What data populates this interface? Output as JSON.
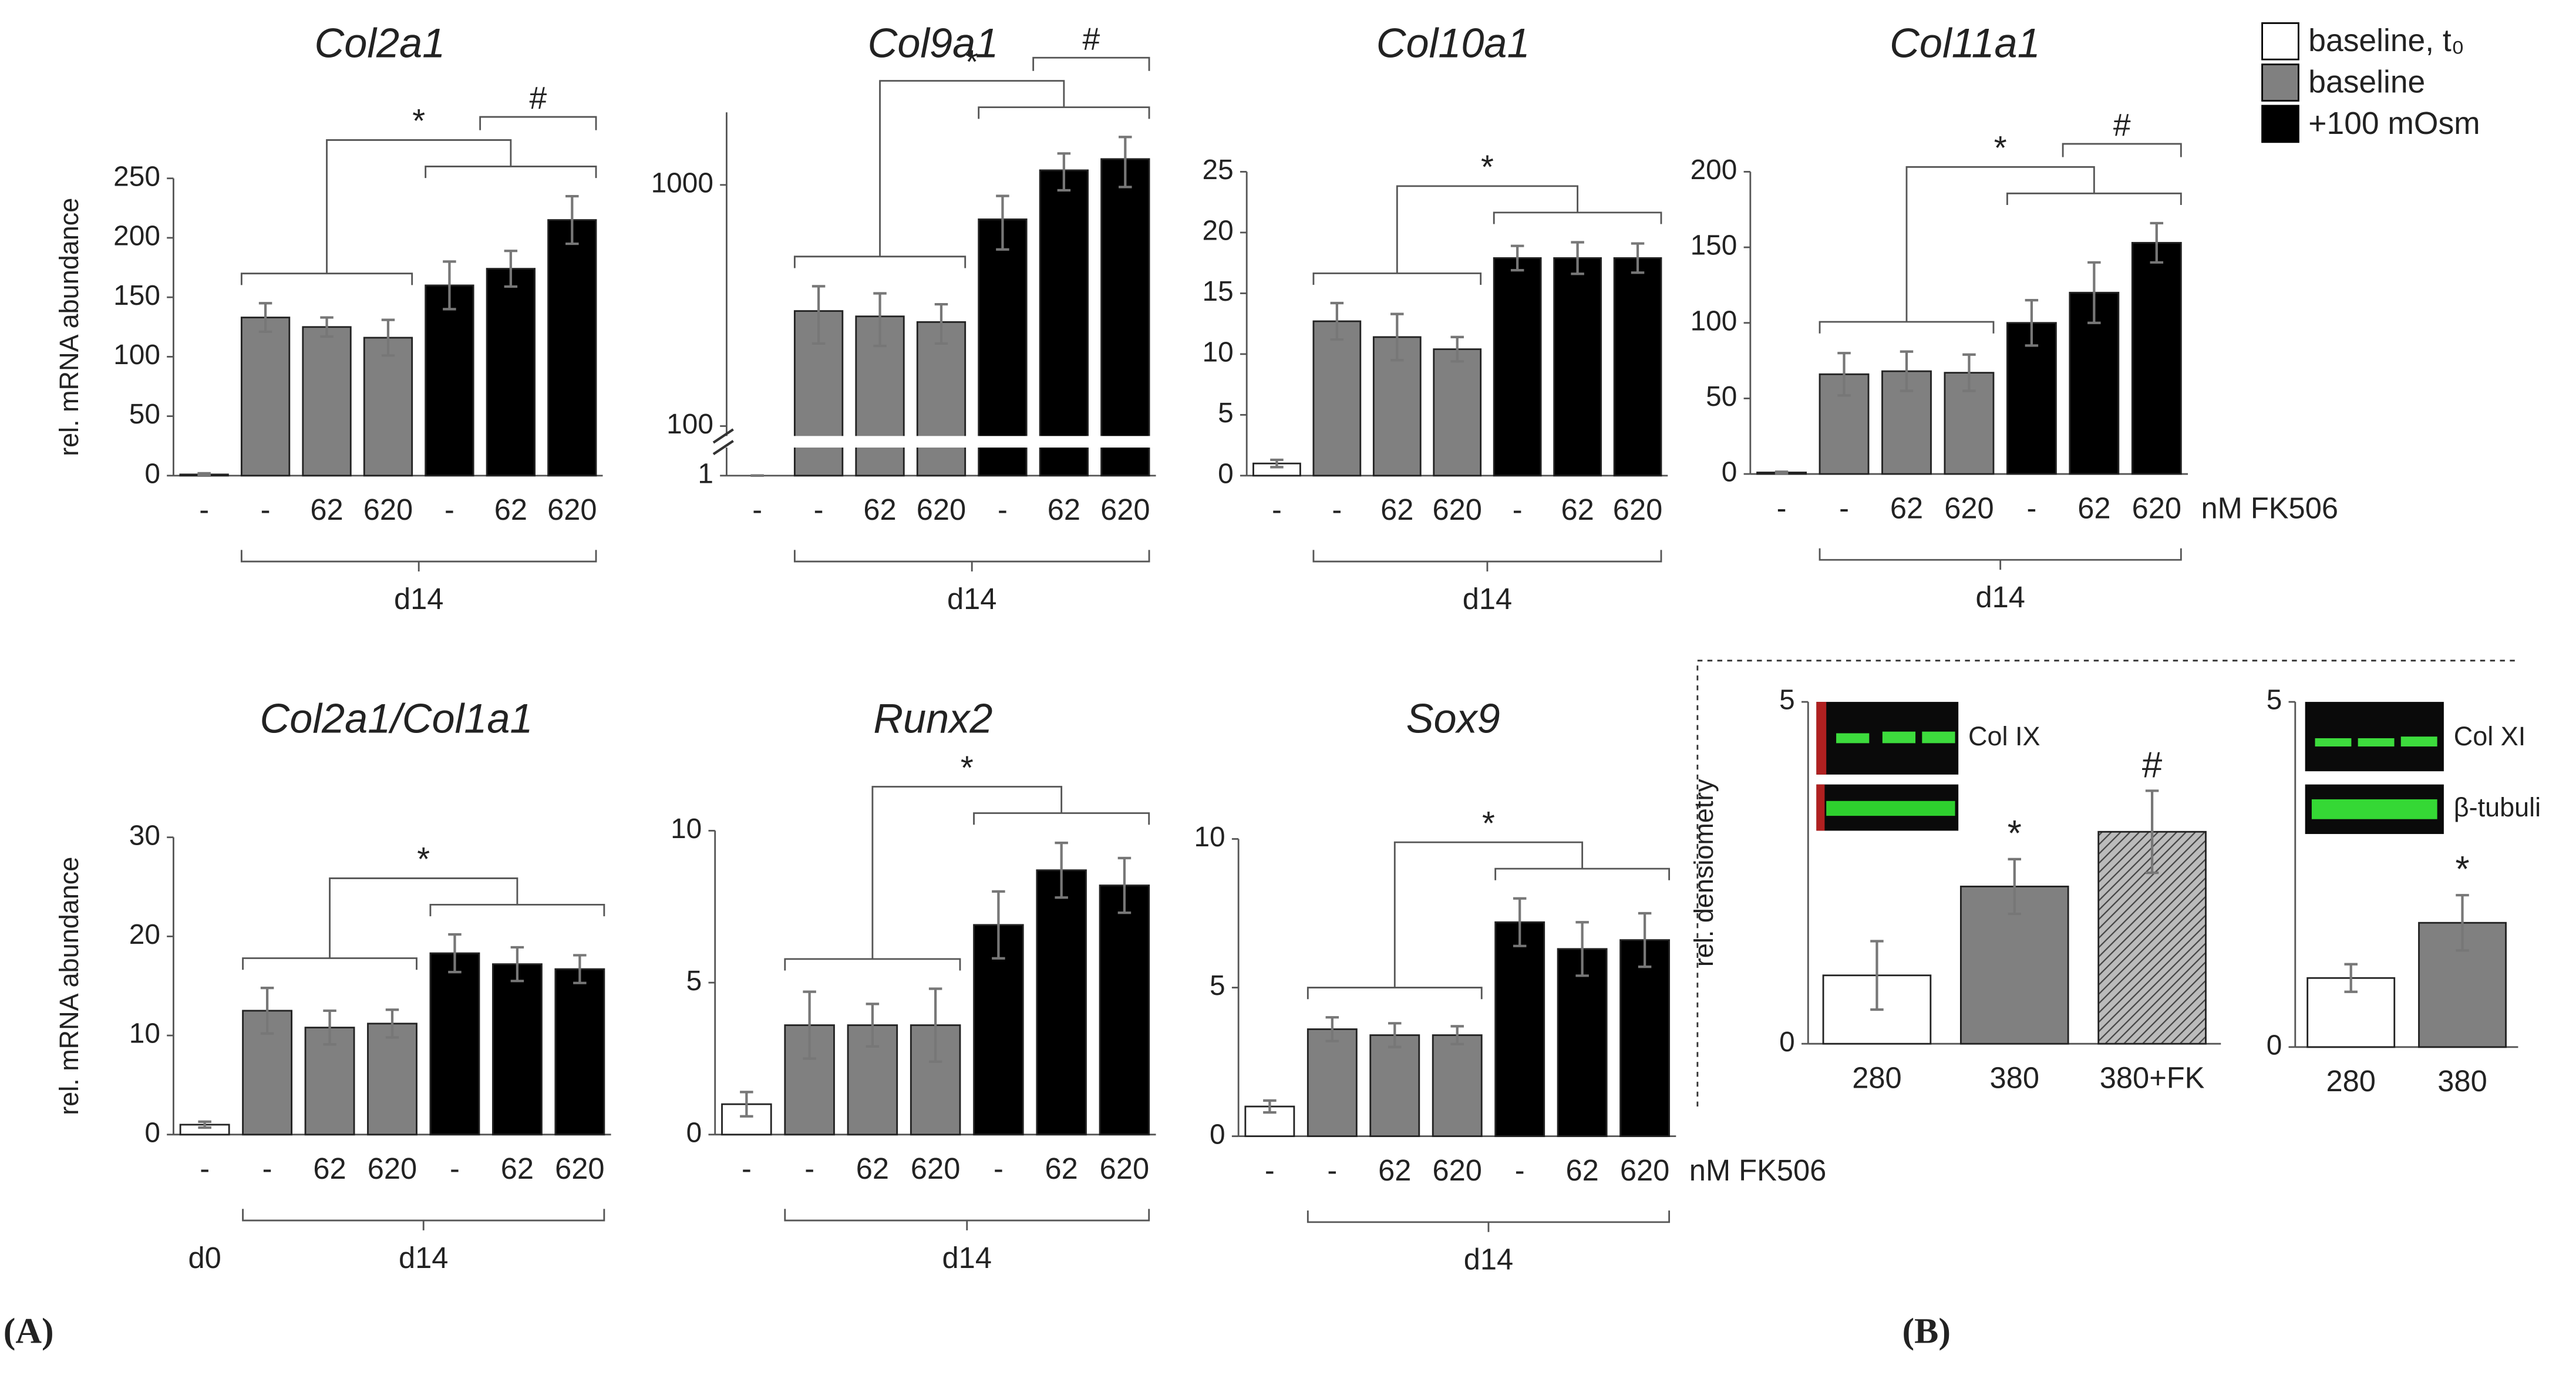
{
  "chart_data": [
    {
      "type": "bar",
      "title": "Col2a1",
      "y_label": "rel. mRNA abundance",
      "categories": [
        "-",
        "-",
        "62",
        "620",
        "-",
        "62",
        "620"
      ],
      "values": [
        1,
        133,
        125,
        116,
        160,
        174,
        215
      ],
      "errors": [
        1,
        12,
        8,
        15,
        20,
        15,
        20
      ],
      "colors": [
        "#ffffff",
        "#808080",
        "#808080",
        "#808080",
        "#000000",
        "#000000",
        "#000000"
      ],
      "ylim": [
        0,
        250
      ],
      "yticks": [
        0,
        50,
        100,
        150,
        200,
        250
      ],
      "group_label": "d14",
      "significance": [
        {
          "text": "*"
        },
        {
          "text": "#"
        }
      ]
    },
    {
      "type": "bar",
      "title": "Col9a1",
      "categories": [
        "-",
        "-",
        "62",
        "620",
        "-",
        "62",
        "620"
      ],
      "values": [
        1,
        300,
        285,
        270,
        720,
        1150,
        1280
      ],
      "errors": [
        0.3,
        80,
        70,
        50,
        180,
        200,
        300
      ],
      "colors": [
        "#ffffff",
        "#808080",
        "#808080",
        "#808080",
        "#000000",
        "#000000",
        "#000000"
      ],
      "log_scale": true,
      "axis_break": 100,
      "ylim": [
        1,
        2000
      ],
      "yticks": [
        1,
        100,
        1000
      ],
      "group_label": "d14",
      "significance": [
        {
          "text": "*"
        },
        {
          "text": "#"
        }
      ]
    },
    {
      "type": "bar",
      "title": "Col10a1",
      "categories": [
        "-",
        "-",
        "62",
        "620",
        "-",
        "62",
        "620"
      ],
      "values": [
        1,
        12.7,
        11.4,
        10.4,
        17.9,
        17.9,
        17.9
      ],
      "errors": [
        0.3,
        1.5,
        1.9,
        1,
        1,
        1.3,
        1.2
      ],
      "colors": [
        "#ffffff",
        "#808080",
        "#808080",
        "#808080",
        "#000000",
        "#000000",
        "#000000"
      ],
      "ylim": [
        0,
        25
      ],
      "yticks": [
        0,
        5,
        10,
        15,
        20,
        25
      ],
      "group_label": "d14",
      "significance": [
        {
          "text": "*"
        }
      ]
    },
    {
      "type": "bar",
      "title": "Col11a1",
      "categories": [
        "-",
        "-",
        "62",
        "620",
        "-",
        "62",
        "620"
      ],
      "values": [
        1,
        66,
        68,
        67,
        100,
        120,
        153
      ],
      "errors": [
        0.5,
        14,
        13,
        12,
        15,
        20,
        13
      ],
      "colors": [
        "#ffffff",
        "#808080",
        "#808080",
        "#808080",
        "#000000",
        "#000000",
        "#000000"
      ],
      "ylim": [
        0,
        200
      ],
      "yticks": [
        0,
        50,
        100,
        150,
        200
      ],
      "group_label": "d14",
      "x_unit": "nM FK506",
      "significance": [
        {
          "text": "*"
        },
        {
          "text": "#"
        }
      ]
    },
    {
      "type": "bar",
      "title": "Col2a1/Col1a1",
      "y_label": "rel. mRNA abundance",
      "categories": [
        "-",
        "-",
        "62",
        "620",
        "-",
        "62",
        "620"
      ],
      "values": [
        1,
        12.5,
        10.8,
        11.2,
        18.3,
        17.2,
        16.7
      ],
      "errors": [
        0.3,
        2.3,
        1.7,
        1.4,
        1.9,
        1.7,
        1.4
      ],
      "colors": [
        "#ffffff",
        "#808080",
        "#808080",
        "#808080",
        "#000000",
        "#000000",
        "#000000"
      ],
      "ylim": [
        0,
        30
      ],
      "yticks": [
        0,
        10,
        20,
        30
      ],
      "baseline_label": "d0",
      "group_label": "d14",
      "significance": [
        {
          "text": "*"
        }
      ]
    },
    {
      "type": "bar",
      "title": "Runx2",
      "categories": [
        "-",
        "-",
        "62",
        "620",
        "-",
        "62",
        "620"
      ],
      "values": [
        1,
        3.6,
        3.6,
        3.6,
        6.9,
        8.7,
        8.2
      ],
      "errors": [
        0.4,
        1.1,
        0.7,
        1.2,
        1.1,
        0.9,
        0.9
      ],
      "colors": [
        "#ffffff",
        "#808080",
        "#808080",
        "#808080",
        "#000000",
        "#000000",
        "#000000"
      ],
      "ylim": [
        0,
        10
      ],
      "yticks": [
        0,
        5,
        10
      ],
      "group_label": "d14",
      "significance": [
        {
          "text": "*"
        }
      ]
    },
    {
      "type": "bar",
      "title": "Sox9",
      "categories": [
        "-",
        "-",
        "62",
        "620",
        "-",
        "62",
        "620"
      ],
      "values": [
        1,
        3.6,
        3.4,
        3.4,
        7.2,
        6.3,
        6.6
      ],
      "errors": [
        0.2,
        0.4,
        0.4,
        0.3,
        0.8,
        0.9,
        0.9
      ],
      "colors": [
        "#ffffff",
        "#808080",
        "#808080",
        "#808080",
        "#000000",
        "#000000",
        "#000000"
      ],
      "ylim": [
        0,
        10
      ],
      "yticks": [
        0,
        5,
        10
      ],
      "group_label": "d14",
      "x_unit": "nM FK506",
      "significance": [
        {
          "text": "*"
        }
      ]
    },
    {
      "type": "bar",
      "y_label": "rel. densiometry",
      "categories": [
        "280",
        "380",
        "380+FK"
      ],
      "values": [
        1,
        2.3,
        3.1
      ],
      "errors": [
        0.5,
        0.4,
        0.6
      ],
      "colors": [
        "#ffffff",
        "#808080",
        "#a0a0a0"
      ],
      "hatch": [
        false,
        false,
        true
      ],
      "ylim": [
        0,
        5
      ],
      "yticks": [
        0,
        5
      ],
      "annotations": [
        {
          "text": "*",
          "index": 1
        },
        {
          "text": "#",
          "index": 2
        }
      ],
      "blot_labels": [
        "Col IX"
      ]
    },
    {
      "type": "bar",
      "categories": [
        "280",
        "380"
      ],
      "values": [
        1,
        1.8
      ],
      "errors": [
        0.2,
        0.4
      ],
      "colors": [
        "#ffffff",
        "#808080"
      ],
      "ylim": [
        0,
        5
      ],
      "yticks": [
        0,
        5
      ],
      "annotations": [
        {
          "text": "*",
          "index": 1
        }
      ],
      "blot_labels": [
        "Col XI",
        "β-tubuli"
      ]
    }
  ],
  "legend": [
    {
      "name": "baseline, t₀",
      "color": "#ffffff"
    },
    {
      "name": "baseline",
      "color": "#808080"
    },
    {
      "name": "+100 mOsm",
      "color": "#000000"
    }
  ],
  "panel_labels": [
    "(A)",
    "(B)"
  ]
}
